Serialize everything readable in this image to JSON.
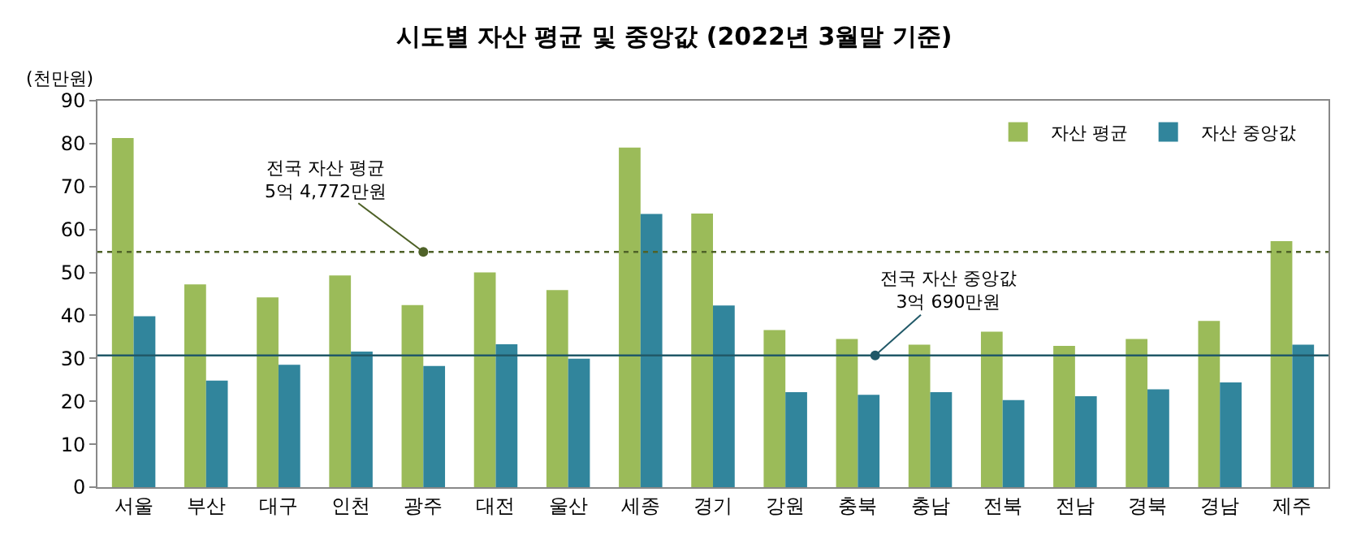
{
  "chart_data": {
    "type": "bar",
    "title": "시도별 자산 평균 및 중앙값 (2022년 3월말 기준)",
    "ylabel": "(천만원)",
    "categories": [
      "서울",
      "부산",
      "대구",
      "인천",
      "광주",
      "대전",
      "울산",
      "세종",
      "경기",
      "강원",
      "충북",
      "충남",
      "전북",
      "전남",
      "경북",
      "경남",
      "제주"
    ],
    "series": [
      {
        "name": "자산 평균",
        "color": "#9bbb59",
        "values": [
          81.3,
          47.2,
          44.2,
          49.3,
          42.4,
          50.0,
          45.9,
          79.1,
          63.7,
          36.6,
          34.5,
          33.2,
          36.2,
          32.9,
          34.5,
          38.7,
          57.3
        ]
      },
      {
        "name": "자산 중앙값",
        "color": "#31859c",
        "values": [
          39.8,
          24.8,
          28.5,
          31.6,
          28.2,
          33.3,
          29.9,
          63.6,
          42.3,
          22.1,
          21.5,
          22.1,
          20.3,
          21.2,
          22.8,
          24.4,
          33.2
        ]
      }
    ],
    "ylim": [
      0,
      90
    ],
    "yticks": [
      0,
      10,
      20,
      30,
      40,
      50,
      60,
      70,
      80,
      90
    ],
    "ref_lines": [
      {
        "axis": "y",
        "value": 54.772,
        "label": "전국 자산 평균\n5억 4,772만원",
        "color": "#4f6228",
        "line_style": "dotted"
      },
      {
        "axis": "y",
        "value": 30.69,
        "label": "전국 자산 중앙값\n3억 690만원",
        "color": "#215968",
        "line_style": "solid"
      }
    ],
    "legend": "top right"
  }
}
